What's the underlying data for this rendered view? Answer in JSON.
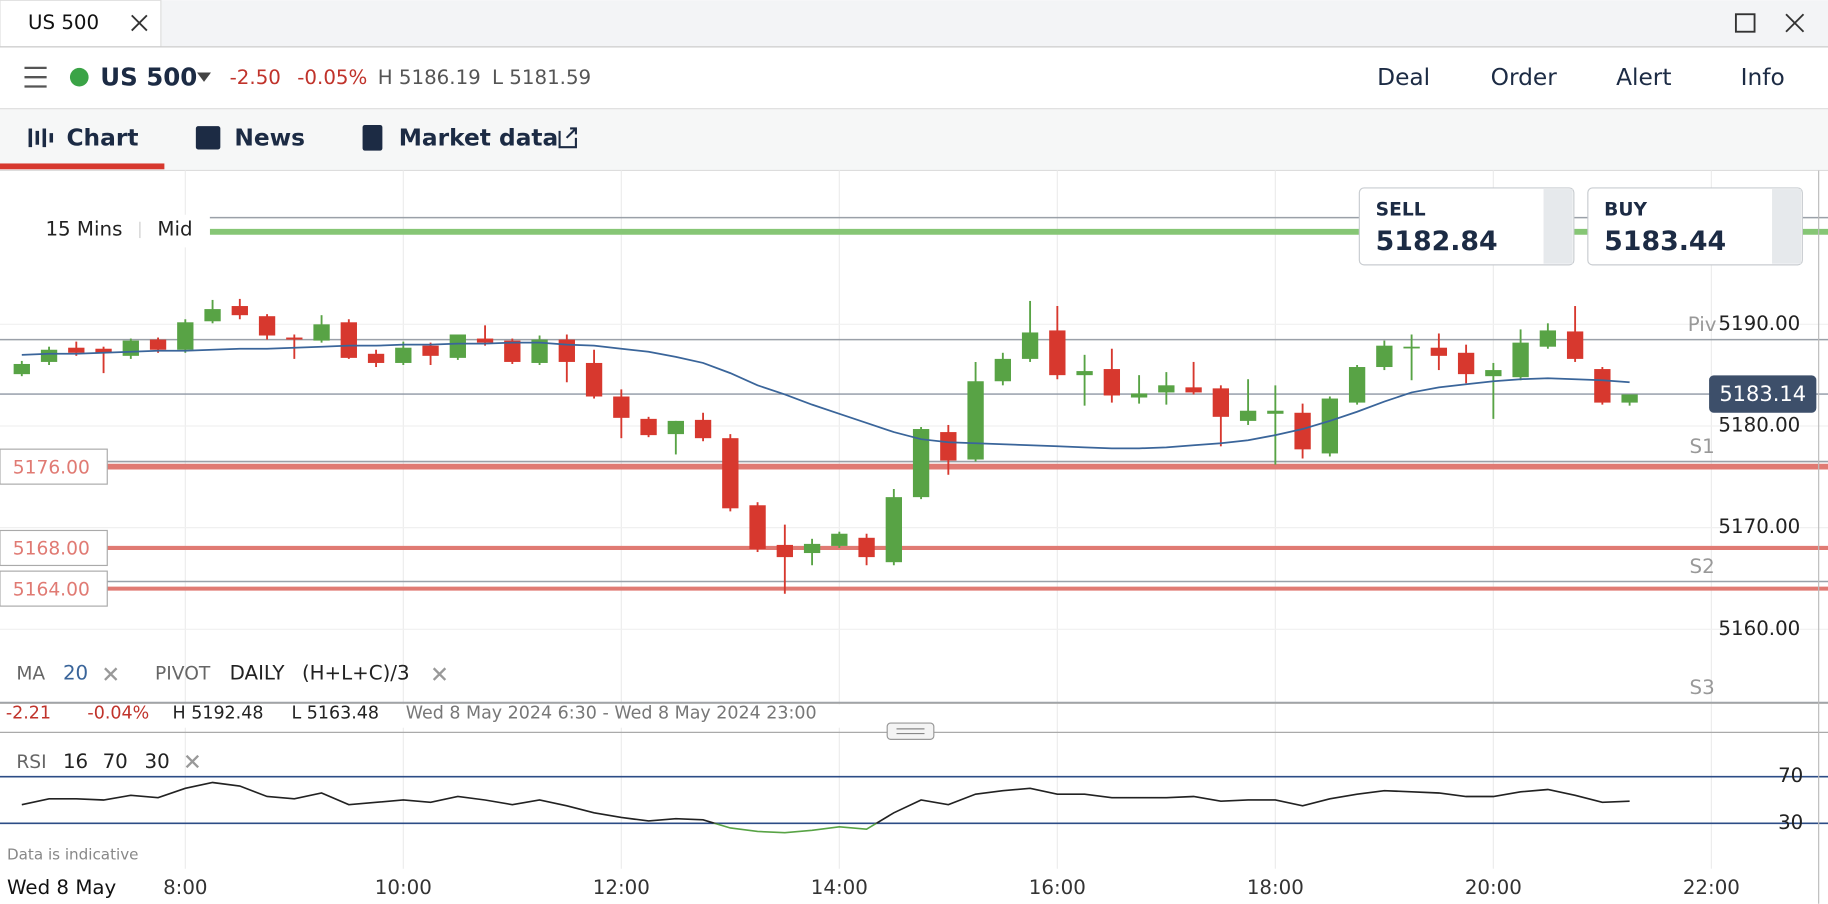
{
  "window": {
    "tab": "US 500"
  },
  "header": {
    "instrument": "US 500",
    "change": "-2.50",
    "change_pct": "-0.05%",
    "high": "H 5186.19",
    "low": "L 5181.59",
    "actions": [
      "Deal",
      "Order",
      "Alert",
      "Info"
    ]
  },
  "tabs": [
    "Chart",
    "News",
    "Market data"
  ],
  "toolbar": {
    "timeframe": "15 Mins",
    "price_type": "Mid"
  },
  "quote": {
    "sell_label": "SELL",
    "sell": "5182.84",
    "buy_label": "BUY",
    "buy": "5183.44"
  },
  "indicators": {
    "ma": "MA",
    "ma_period": "20",
    "pivot": "PIVOT",
    "pivot_period": "DAILY",
    "pivot_formula": "(H+L+C)/3"
  },
  "stats": {
    "change": "-2.21",
    "change_pct": "-0.04%",
    "high": "H 5192.48",
    "low": "L 5163.48",
    "range": "Wed 8 May 2024 6:30 - Wed 8 May 2024 23:00"
  },
  "footer": {
    "note": "Data is indicative",
    "date": "Wed 8 May"
  },
  "chart_data": {
    "type": "candlestick",
    "x": [
      6.5,
      6.75,
      7,
      7.25,
      7.5,
      7.75,
      8,
      8.25,
      8.5,
      8.75,
      9,
      9.25,
      9.5,
      9.75,
      10,
      10.25,
      10.5,
      10.75,
      11,
      11.25,
      11.5,
      11.75,
      12,
      12.25,
      12.5,
      12.75,
      13,
      13.25,
      13.5,
      13.75,
      14,
      14.25,
      14.5,
      14.75,
      15,
      15.25,
      15.5,
      15.75,
      16,
      16.25,
      16.5,
      16.75,
      17,
      17.25,
      17.5,
      17.75,
      18,
      18.25,
      18.5,
      18.75,
      19,
      19.25,
      19.5,
      19.75,
      20,
      20.25,
      20.5,
      20.75,
      21,
      21.25
    ],
    "open": [
      5185.1,
      5186.3,
      5187.7,
      5187.6,
      5186.9,
      5188.5,
      5187.5,
      5190.3,
      5191.8,
      5190.8,
      5188.7,
      5188.4,
      5190.2,
      5187.1,
      5186.2,
      5187.9,
      5186.7,
      5188.6,
      5188.4,
      5186.2,
      5188.5,
      5186.2,
      5182.9,
      5180.7,
      5179.2,
      5180.6,
      5178.8,
      5172.2,
      5168.3,
      5167.5,
      5168.2,
      5169.0,
      5166.6,
      5173.0,
      5179.4,
      5176.7,
      5184.4,
      5186.6,
      5189.4,
      5185.0,
      5185.6,
      5182.8,
      5183.3,
      5183.8,
      5183.7,
      5180.5,
      5181.2,
      5181.3,
      5177.3,
      5182.3,
      5185.8,
      5187.7,
      5187.7,
      5187.2,
      5184.9,
      5184.8,
      5187.8,
      5189.3,
      5185.6,
      5182.3
    ],
    "high": [
      5186.4,
      5187.8,
      5188.3,
      5187.8,
      5188.6,
      5188.7,
      5190.5,
      5192.4,
      5192.5,
      5191.0,
      5189.0,
      5190.9,
      5190.5,
      5187.5,
      5188.3,
      5188.2,
      5189.0,
      5189.9,
      5188.6,
      5188.9,
      5189.0,
      5187.5,
      5183.6,
      5180.9,
      5180.5,
      5181.3,
      5179.2,
      5172.5,
      5170.3,
      5168.9,
      5169.6,
      5169.4,
      5173.8,
      5179.9,
      5180.1,
      5186.3,
      5187.2,
      5192.3,
      5191.8,
      5187.0,
      5187.6,
      5185.0,
      5185.3,
      5186.3,
      5184.0,
      5184.6,
      5184.0,
      5182.2,
      5182.9,
      5186.0,
      5188.4,
      5189.0,
      5189.1,
      5188.0,
      5186.2,
      5189.5,
      5190.1,
      5191.8,
      5185.8,
      5183.0
    ],
    "low": [
      5184.9,
      5186.0,
      5186.9,
      5185.2,
      5186.6,
      5187.2,
      5187.2,
      5190.1,
      5190.5,
      5188.5,
      5186.6,
      5188.2,
      5186.6,
      5185.8,
      5186.0,
      5186.0,
      5186.5,
      5187.9,
      5186.1,
      5186.0,
      5184.3,
      5182.7,
      5178.8,
      5178.9,
      5177.2,
      5178.5,
      5171.6,
      5167.6,
      5163.5,
      5166.3,
      5168.0,
      5166.3,
      5166.3,
      5172.8,
      5175.2,
      5176.5,
      5184.0,
      5186.3,
      5184.6,
      5182.0,
      5182.3,
      5182.2,
      5182.1,
      5183.1,
      5178.0,
      5180.1,
      5176.2,
      5176.8,
      5177.0,
      5182.1,
      5185.5,
      5184.5,
      5185.5,
      5184.2,
      5180.7,
      5184.5,
      5187.6,
      5186.3,
      5182.1,
      5182.0
    ],
    "close": [
      5186.1,
      5187.5,
      5187.2,
      5187.2,
      5188.4,
      5187.5,
      5190.2,
      5191.5,
      5190.9,
      5188.9,
      5188.5,
      5190.0,
      5186.7,
      5186.2,
      5187.7,
      5186.9,
      5189.0,
      5188.2,
      5186.3,
      5188.5,
      5186.3,
      5182.9,
      5180.8,
      5179.1,
      5180.5,
      5178.8,
      5171.9,
      5167.9,
      5167.1,
      5168.4,
      5169.4,
      5167.1,
      5173.0,
      5179.7,
      5176.6,
      5184.4,
      5186.6,
      5189.2,
      5185.0,
      5185.4,
      5183.0,
      5183.2,
      5184.0,
      5183.3,
      5180.9,
      5181.5,
      5181.5,
      5177.7,
      5182.7,
      5185.8,
      5187.9,
      5187.8,
      5186.9,
      5185.1,
      5185.5,
      5188.2,
      5189.4,
      5186.6,
      5182.3,
      5183.1
    ],
    "up_color": "#58a345",
    "down_color": "#d7382e",
    "ma": {
      "color": "#3a659a",
      "values": [
        5187.0,
        5187.1,
        5187.1,
        5187.2,
        5187.3,
        5187.4,
        5187.4,
        5187.5,
        5187.6,
        5187.6,
        5187.7,
        5187.8,
        5187.9,
        5187.9,
        5188.0,
        5188.0,
        5188.1,
        5188.1,
        5188.2,
        5188.2,
        5188.0,
        5187.9,
        5187.6,
        5187.3,
        5186.8,
        5186.2,
        5185.2,
        5184.0,
        5183.1,
        5182.1,
        5181.2,
        5180.3,
        5179.4,
        5178.7,
        5178.4,
        5178.3,
        5178.2,
        5178.1,
        5178.0,
        5177.9,
        5177.8,
        5177.8,
        5177.9,
        5178.1,
        5178.3,
        5178.6,
        5179.1,
        5179.7,
        5180.5,
        5181.4,
        5182.4,
        5183.3,
        5183.8,
        5184.1,
        5184.4,
        5184.6,
        5184.7,
        5184.6,
        5184.5,
        5184.3
      ]
    },
    "xlim": [
      6.3,
      23.07
    ],
    "xticks": [
      {
        "value": 8,
        "label": "8:00"
      },
      {
        "value": 10,
        "label": "10:00"
      },
      {
        "value": 12,
        "label": "12:00"
      },
      {
        "value": 14,
        "label": "14:00"
      },
      {
        "value": 16,
        "label": "16:00"
      },
      {
        "value": 18,
        "label": "18:00"
      },
      {
        "value": 20,
        "label": "20:00"
      },
      {
        "value": 22,
        "label": "22:00"
      }
    ],
    "ylim": [
      5153,
      5205
    ],
    "yticks": [
      {
        "value": 5190,
        "label": "5190.00"
      },
      {
        "value": 5180,
        "label": "5180.00"
      },
      {
        "value": 5170,
        "label": "5170.00"
      },
      {
        "value": 5160,
        "label": "5160.00"
      }
    ],
    "levels": [
      {
        "value": 5176,
        "label": "5176.00"
      },
      {
        "value": 5168,
        "label": "5168.00"
      },
      {
        "value": 5164,
        "label": "5164.00"
      }
    ],
    "level_color": "#e07a73",
    "pivots": [
      {
        "value": 5200.5
      },
      {
        "name": "Piv",
        "value": 5188.5
      },
      {
        "name": "S1",
        "value": 5176.5
      },
      {
        "name": "S2",
        "value": 5164.7
      },
      {
        "name": "S3",
        "value": 5152.8
      }
    ],
    "alert_line": {
      "value": 5199.1,
      "color": "#86c675"
    },
    "last_price": {
      "value": 5183.14,
      "label": "5183.14"
    },
    "rsi": {
      "name": "RSI",
      "period": "16",
      "ylim": [
        0,
        100
      ],
      "yticks": [
        70,
        30
      ],
      "color": "#222222",
      "low_color": "#58a345",
      "values": [
        46,
        51,
        51,
        50,
        54,
        52,
        60,
        65,
        62,
        53,
        51,
        56,
        46,
        48,
        50,
        48,
        53,
        50,
        46,
        50,
        45,
        39,
        35,
        32,
        34,
        33,
        26,
        23,
        22,
        24,
        27,
        25,
        39,
        50,
        46,
        55,
        58,
        60,
        55,
        55,
        52,
        52,
        52,
        53,
        49,
        50,
        50,
        45,
        51,
        55,
        58,
        57,
        56,
        53,
        53,
        57,
        59,
        54,
        48,
        49
      ]
    }
  }
}
